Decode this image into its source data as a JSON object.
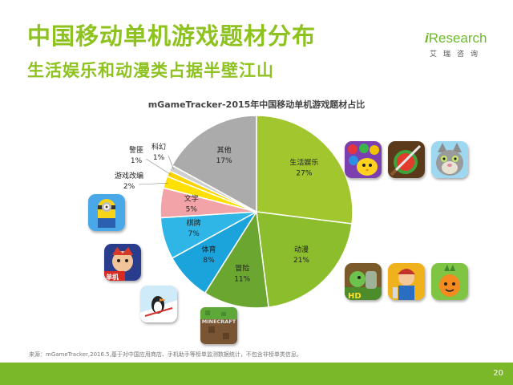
{
  "header": {
    "title": "中国移动单机游戏题材分布",
    "subtitle": "生活娱乐和动漫类占据半壁江山"
  },
  "logo": {
    "main_prefix": "i",
    "main_rest": "Research",
    "sub": "艾瑞咨询"
  },
  "chart_data": {
    "type": "pie",
    "title": "mGameTracker-2015年中国移动单机游戏题材占比",
    "unit": "%",
    "slices": [
      {
        "name": "生活娱乐",
        "value": 27,
        "label": "27%",
        "color": "#a2c72e"
      },
      {
        "name": "动漫",
        "value": 21,
        "label": "21%",
        "color": "#8cbd2c"
      },
      {
        "name": "冒险",
        "value": 11,
        "label": "11%",
        "color": "#6ba730"
      },
      {
        "name": "体育",
        "value": 8,
        "label": "8%",
        "color": "#1ba3dc"
      },
      {
        "name": "棋牌",
        "value": 7,
        "label": "7%",
        "color": "#2fb6e6"
      },
      {
        "name": "文学",
        "value": 5,
        "label": "5%",
        "color": "#f2a3a7"
      },
      {
        "name": "游戏改编",
        "value": 2,
        "label": "2%",
        "color": "#ffe000"
      },
      {
        "name": "警匪",
        "value": 1,
        "label": "1%",
        "color": "#ffd400"
      },
      {
        "name": "科幻",
        "value": 1,
        "label": "1%",
        "color": "#cfcfcf"
      },
      {
        "name": "其他",
        "value": 17,
        "label": "17%",
        "color": "#ababab"
      }
    ]
  },
  "footnote": "来源：mGameTracker,2016.5,基于对中国应用商店、手机助手等榜单监测数据统计，不包含非榜单类信息。",
  "page_number": "20",
  "icons": [
    "game-fruit-match-icon",
    "game-fruit-ninja-icon",
    "game-talking-tom-icon",
    "game-plants-vs-zombies-icon",
    "game-subway-surfers-icon",
    "game-carrot-defense-icon",
    "game-minions-icon",
    "game-king-cartoon-icon",
    "game-ski-penguin-icon",
    "game-minecraft-icon"
  ],
  "icon_text": {
    "minecraft": "MINECRAFT",
    "pvz": "HD",
    "king": "单机"
  }
}
